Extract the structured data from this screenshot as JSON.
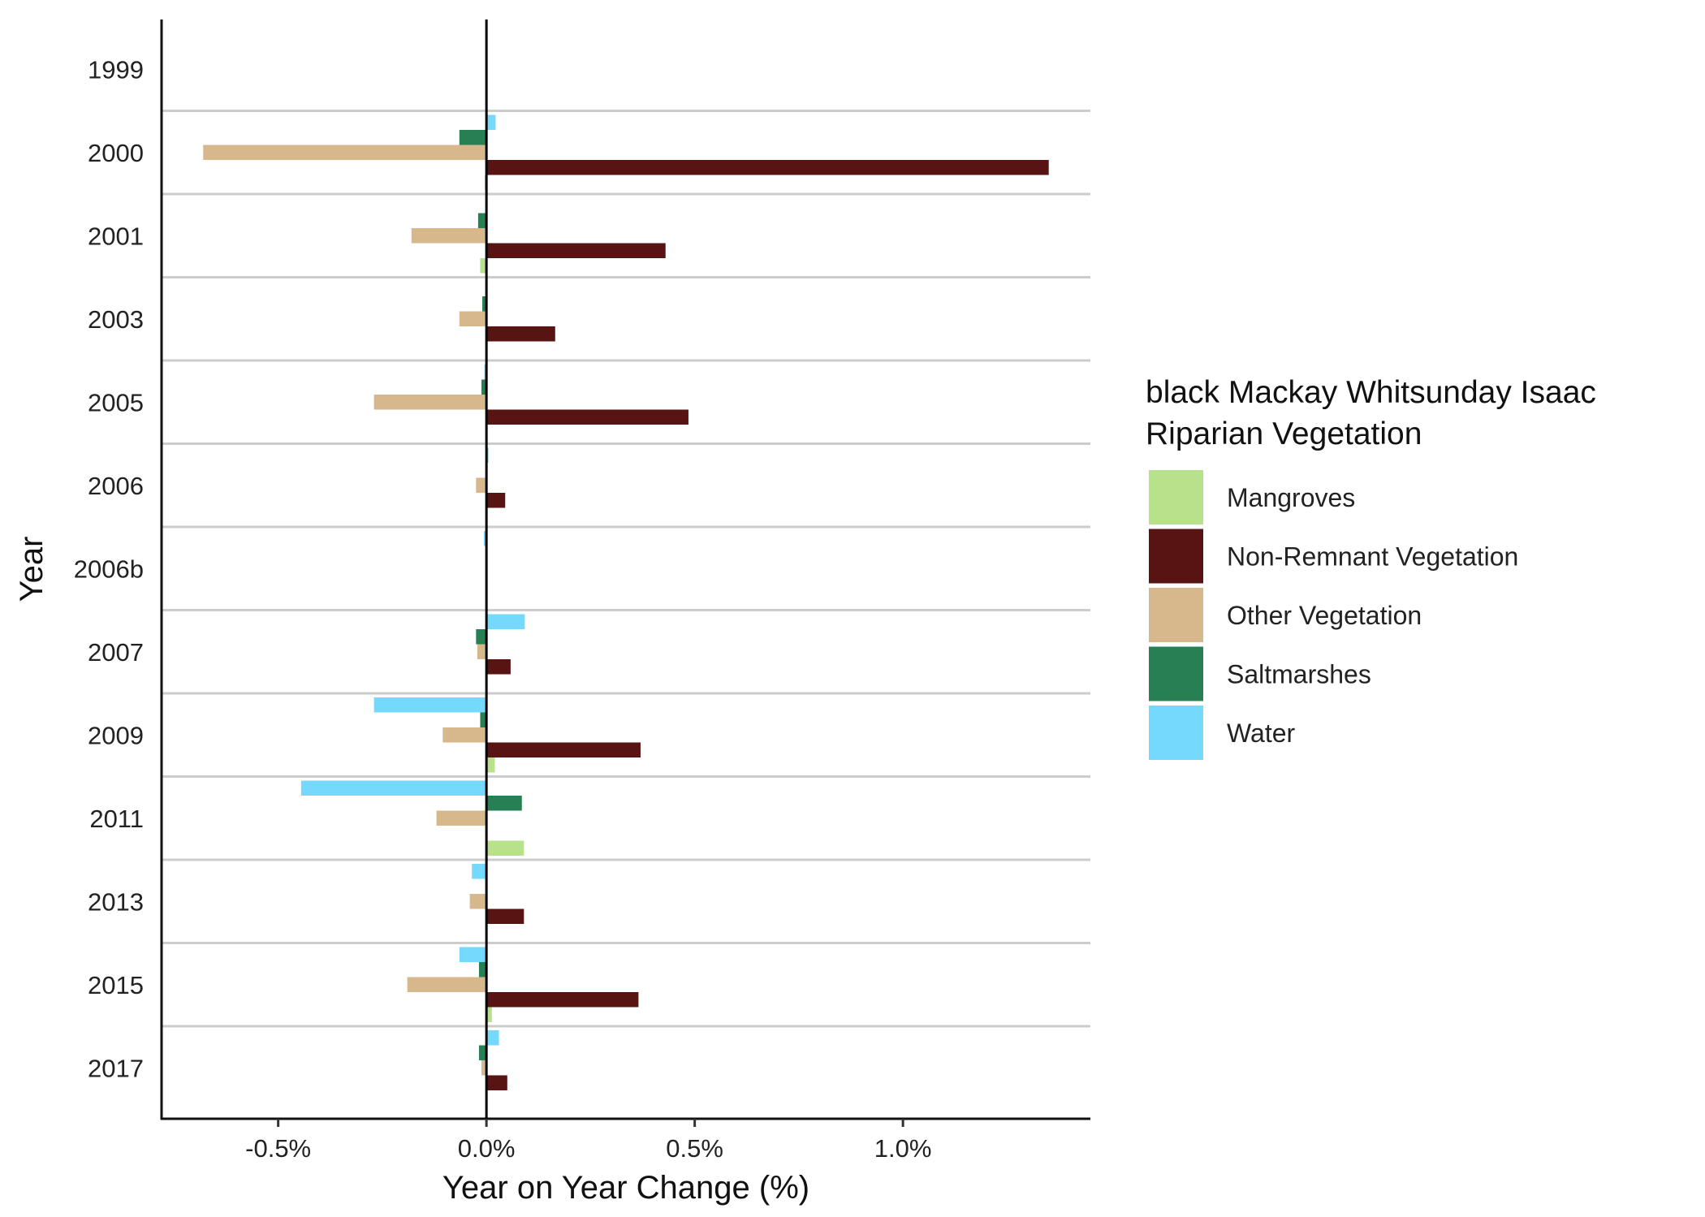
{
  "chart_data": {
    "type": "bar",
    "orientation": "horizontal",
    "title": "",
    "xlabel": "Year on Year Change (%)",
    "ylabel": "Year",
    "xlim": [
      -0.78,
      1.45
    ],
    "xticks": [
      -0.5,
      0.0,
      0.5,
      1.0
    ],
    "xtick_labels": [
      "-0.5%",
      "0.0%",
      "0.5%",
      "1.0%"
    ],
    "grid": "horizontal separators between years",
    "legend": {
      "placement": "right",
      "title_lines": [
        "black Mackay Whitsunday Isaac",
        "Riparian Vegetation"
      ]
    },
    "categories": [
      "1999",
      "2000",
      "2001",
      "2003",
      "2005",
      "2006",
      "2006b",
      "2007",
      "2009",
      "2011",
      "2013",
      "2015",
      "2017"
    ],
    "series": [
      {
        "name": "Mangroves",
        "color": "#b8e18b",
        "values": [
          0,
          -0.004,
          -0.015,
          0.002,
          0.0,
          0.0,
          0.0,
          -0.002,
          0.02,
          0.09,
          0.0,
          0.013,
          0.0
        ]
      },
      {
        "name": "Non-Remnant Vegetation",
        "color": "#581313",
        "values": [
          0,
          1.35,
          0.43,
          0.165,
          0.485,
          0.045,
          0.0,
          0.058,
          0.37,
          0.0,
          0.09,
          0.365,
          0.05
        ]
      },
      {
        "name": "Other Vegetation",
        "color": "#d7b78c",
        "values": [
          0,
          -0.68,
          -0.18,
          -0.065,
          -0.27,
          -0.025,
          0.0,
          -0.022,
          -0.105,
          -0.12,
          -0.04,
          -0.19,
          -0.012
        ]
      },
      {
        "name": "Saltmarshes",
        "color": "#278054",
        "values": [
          0,
          -0.065,
          -0.02,
          -0.01,
          -0.012,
          0.0,
          0.0,
          -0.025,
          -0.015,
          0.085,
          0.0,
          -0.018,
          -0.018
        ]
      },
      {
        "name": "Water",
        "color": "#75d9fd",
        "values": [
          0,
          0.022,
          0.0,
          0.0,
          -0.005,
          0.005,
          -0.006,
          0.092,
          -0.27,
          -0.445,
          -0.035,
          -0.065,
          0.03
        ]
      }
    ]
  }
}
